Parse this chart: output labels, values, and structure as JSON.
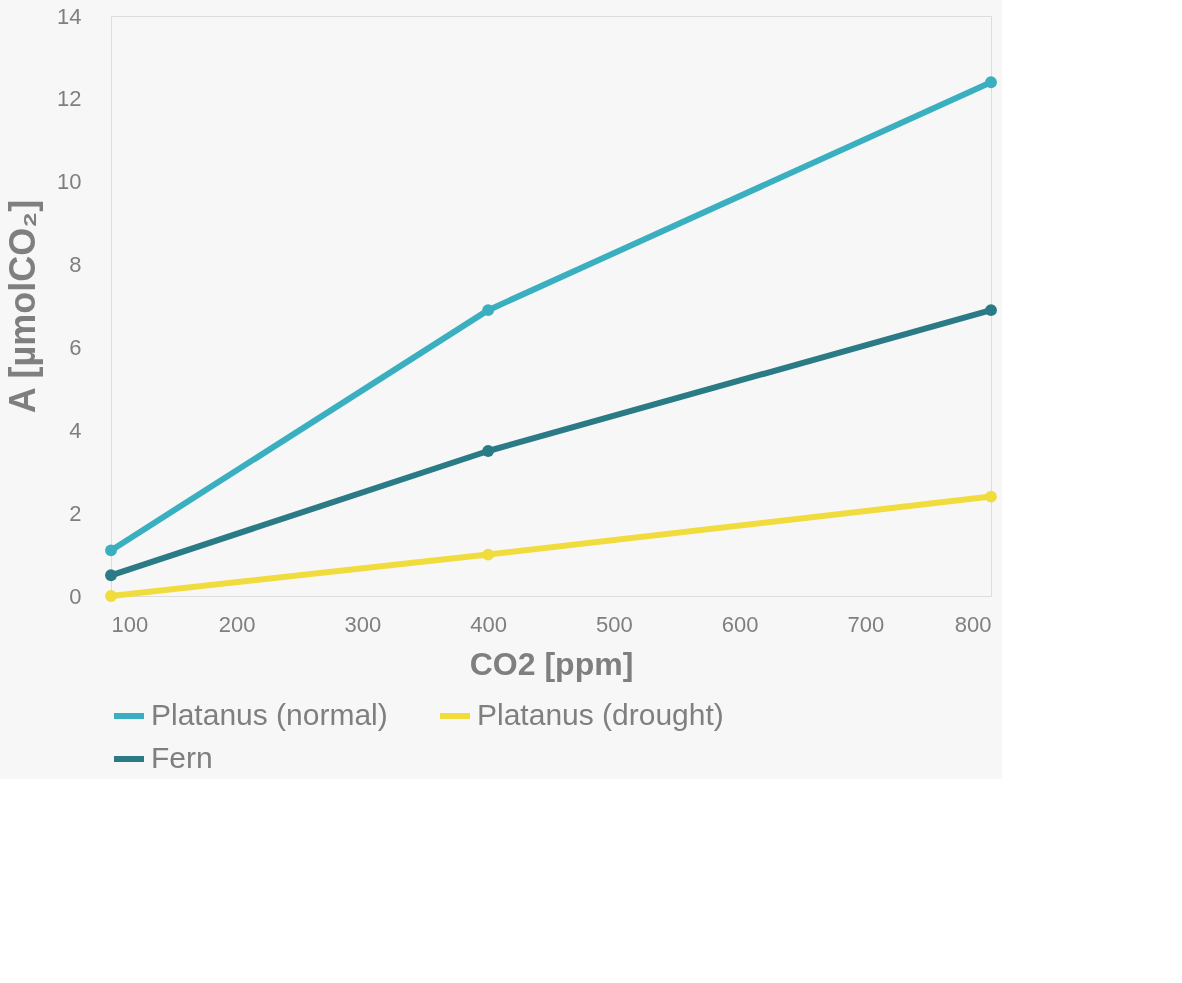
{
  "chart_data": {
    "type": "line",
    "xlabel": "CO2 [ppm]",
    "ylabel": "A [µmolCO₂]",
    "x": [
      100,
      400,
      800
    ],
    "series": [
      {
        "name": "Platanus (normal)",
        "color": "#3aafbf",
        "values": [
          1.1,
          6.9,
          12.4
        ]
      },
      {
        "name": "Platanus (drought)",
        "color": "#f0dc3c",
        "values": [
          0.0,
          1.0,
          2.4
        ]
      },
      {
        "name": "Fern",
        "color": "#2a7b86",
        "values": [
          0.5,
          3.5,
          6.9
        ]
      }
    ],
    "xlim": [
      100,
      800
    ],
    "xticks": [
      100,
      200,
      300,
      400,
      500,
      600,
      700,
      800
    ],
    "ylim": [
      0,
      14
    ],
    "yticks": [
      0,
      2,
      4,
      6,
      8,
      10,
      12,
      14
    ],
    "grid": false,
    "legend": "bottom",
    "marker": "circle",
    "line_style": "solid"
  }
}
